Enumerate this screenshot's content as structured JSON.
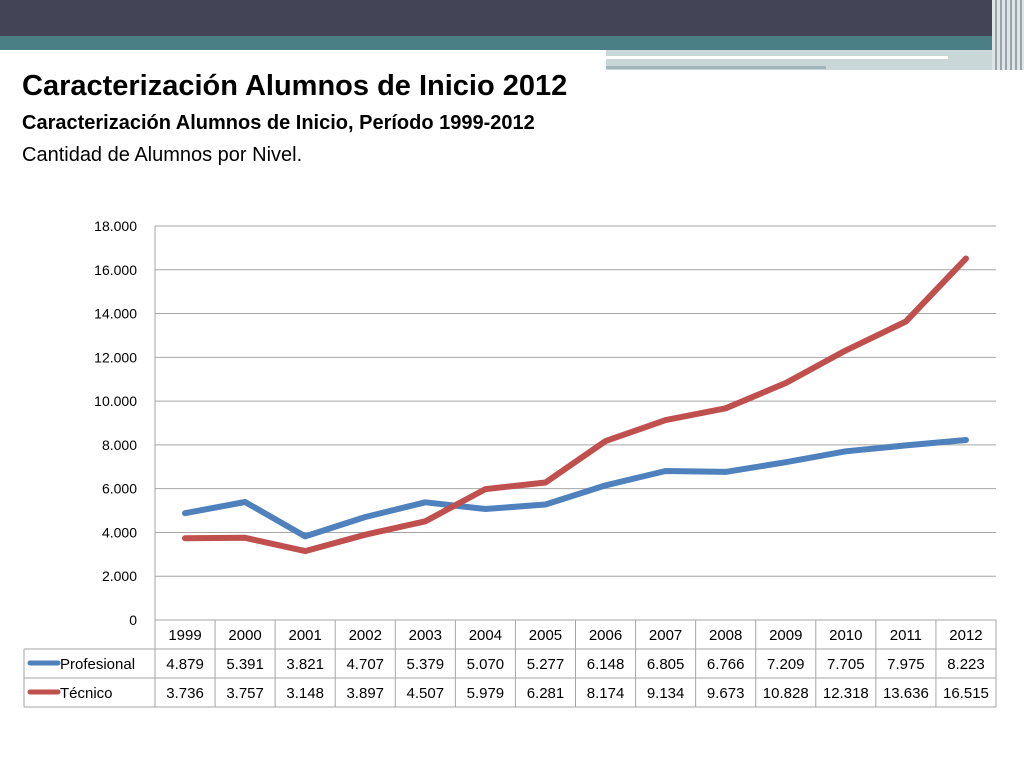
{
  "header": {
    "title": "Caracterización Alumnos de Inicio 2012",
    "subtitle": "Caracterización Alumnos de Inicio, Período 1999-2012",
    "subtitle2": "Cantidad de Alumnos por Nivel."
  },
  "chart_data": {
    "type": "line",
    "categories": [
      "1999",
      "2000",
      "2001",
      "2002",
      "2003",
      "2004",
      "2005",
      "2006",
      "2007",
      "2008",
      "2009",
      "2010",
      "2011",
      "2012"
    ],
    "ylim": [
      0,
      18000
    ],
    "y_ticks": [
      0,
      2000,
      4000,
      6000,
      8000,
      10000,
      12000,
      14000,
      16000,
      18000
    ],
    "y_tick_labels": [
      "0",
      "2.000",
      "4.000",
      "6.000",
      "8.000",
      "10.000",
      "12.000",
      "14.000",
      "16.000",
      "18.000"
    ],
    "grid": true,
    "legend": "data-table",
    "series": [
      {
        "name": "Profesional",
        "color": "#4f81bd",
        "values": [
          4879,
          5391,
          3821,
          4707,
          5379,
          5070,
          5277,
          6148,
          6805,
          6766,
          7209,
          7705,
          7975,
          8223
        ],
        "labels": [
          "4.879",
          "5.391",
          "3.821",
          "4.707",
          "5.379",
          "5.070",
          "5.277",
          "6.148",
          "6.805",
          "6.766",
          "7.209",
          "7.705",
          "7.975",
          "8.223"
        ]
      },
      {
        "name": "Técnico",
        "color": "#c0504d",
        "values": [
          3736,
          3757,
          3148,
          3897,
          4507,
          5979,
          6281,
          8174,
          9134,
          9673,
          10828,
          12318,
          13636,
          16515
        ],
        "labels": [
          "3.736",
          "3.757",
          "3.148",
          "3.897",
          "4.507",
          "5.979",
          "6.281",
          "8.174",
          "9.134",
          "9.673",
          "10.828",
          "12.318",
          "13.636",
          "16.515"
        ]
      }
    ]
  }
}
